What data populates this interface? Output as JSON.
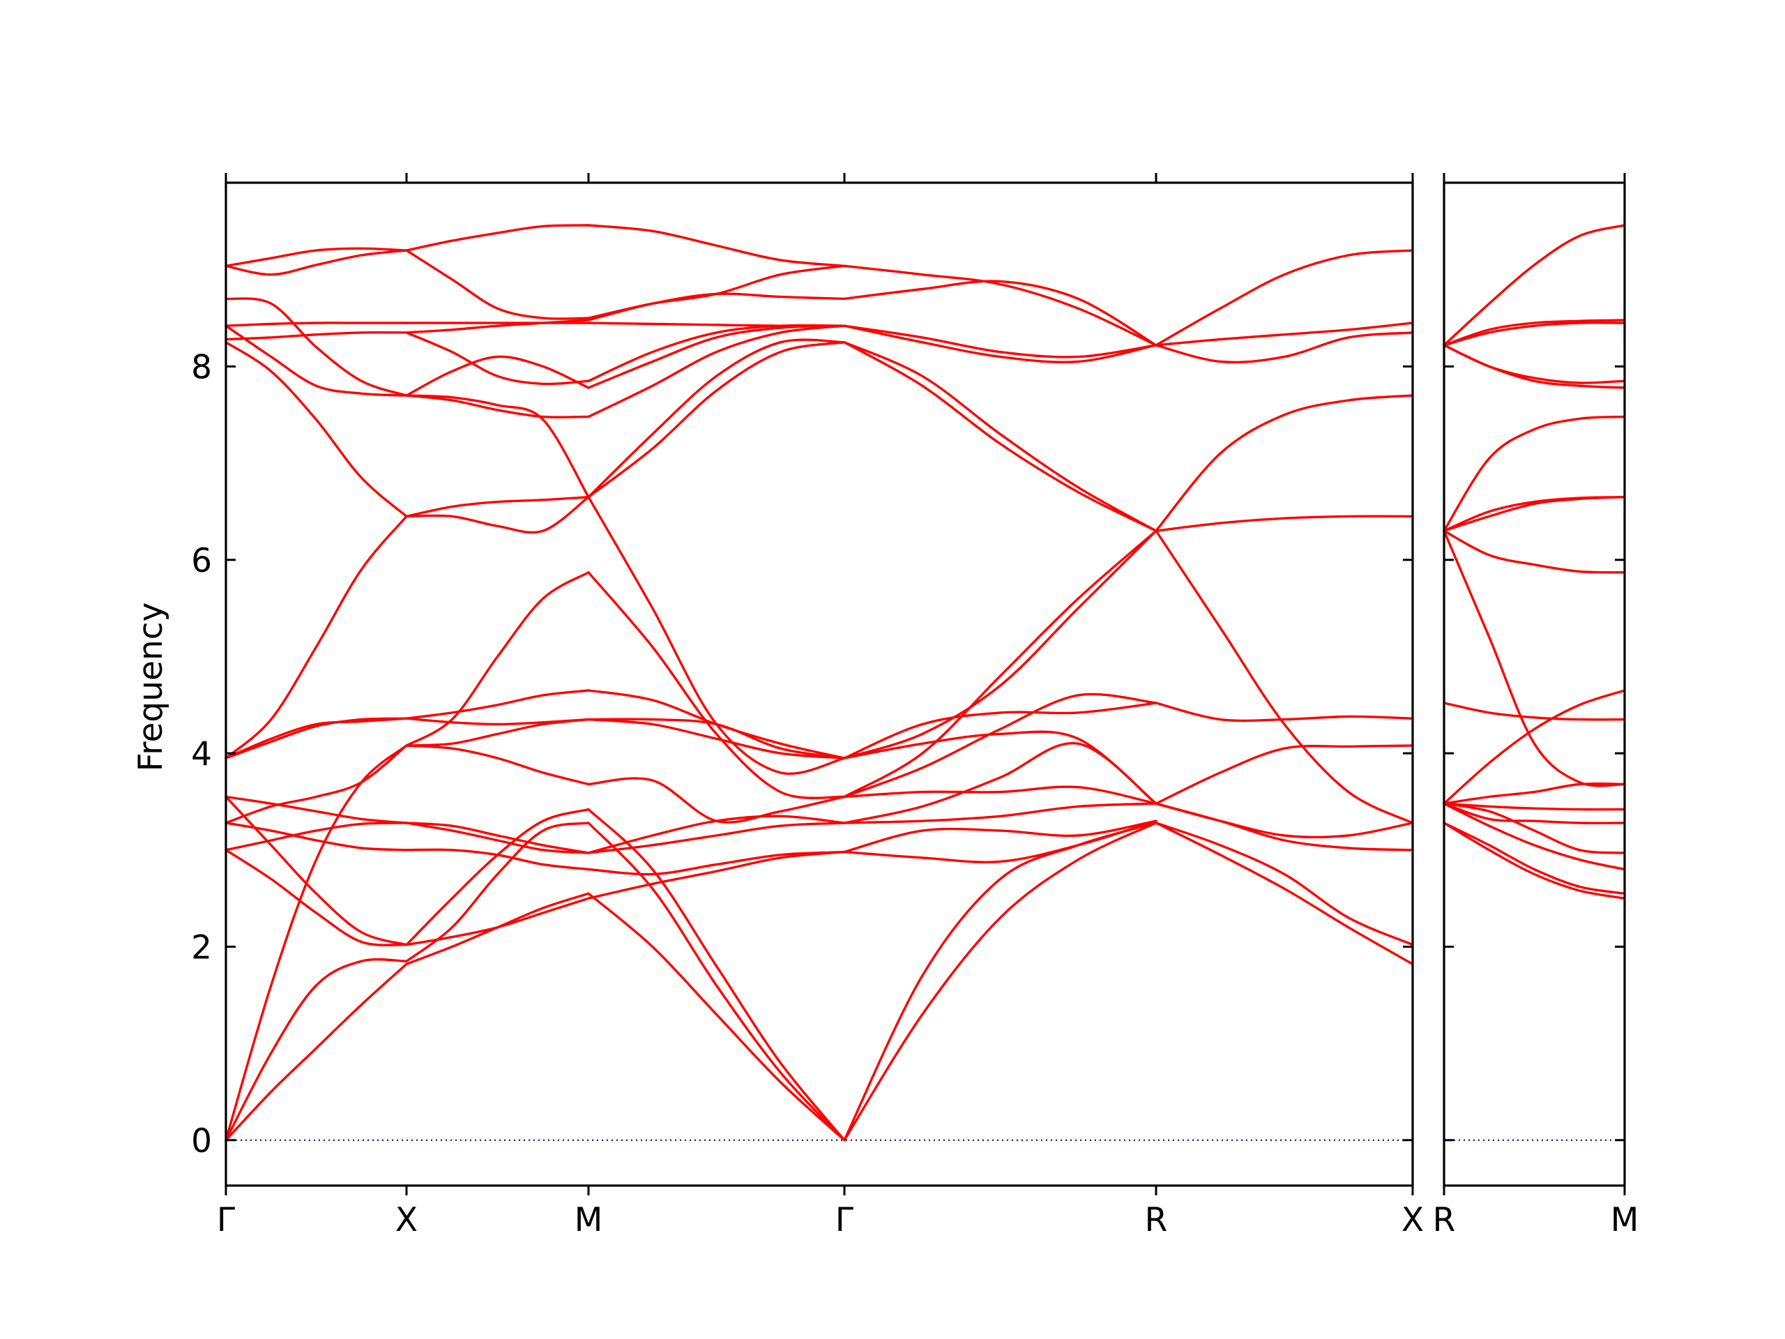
{
  "chart_data": {
    "type": "line",
    "ylabel": "Frequency",
    "ylim": [
      -0.47,
      9.9
    ],
    "y_ticks": [
      0,
      2,
      4,
      6,
      8
    ],
    "colors": {
      "bands": "#ff0000",
      "zero_line": "#00008b"
    },
    "reference_line": {
      "y": 0,
      "style": "dotted"
    },
    "grid": false,
    "legend": "none",
    "panels": [
      {
        "x_ticks": [
          "Γ",
          "X",
          "M",
          "Γ",
          "R",
          "X"
        ],
        "segments": [
          {
            "from": "Γ",
            "to": "X",
            "samples": [
              0,
              0.25,
              0.5,
              0.75,
              1
            ],
            "bands": [
              [
                0,
                0.5,
                0.95,
                1.4,
                1.82
              ],
              [
                0,
                0.9,
                1.6,
                1.85,
                1.85
              ],
              [
                3.0,
                2.7,
                2.35,
                2.05,
                2.02
              ],
              [
                3.55,
                3.05,
                2.55,
                2.15,
                2.02
              ],
              [
                3.28,
                3.2,
                3.1,
                3.02,
                3.0
              ],
              [
                3.0,
                3.1,
                3.2,
                3.27,
                3.28
              ],
              [
                3.55,
                3.48,
                3.4,
                3.32,
                3.28
              ],
              [
                3.28,
                3.45,
                3.55,
                3.7,
                4.08
              ],
              [
                0,
                1.6,
                2.9,
                3.7,
                4.08
              ],
              [
                3.95,
                4.12,
                4.28,
                4.35,
                4.36
              ],
              [
                3.95,
                4.15,
                4.3,
                4.33,
                4.36
              ],
              [
                3.95,
                4.35,
                5.1,
                5.9,
                6.45
              ],
              [
                8.25,
                7.95,
                7.45,
                6.85,
                6.45
              ],
              [
                8.42,
                8.1,
                7.8,
                7.72,
                7.7
              ],
              [
                8.7,
                8.65,
                8.2,
                7.85,
                7.7
              ],
              [
                8.28,
                8.3,
                8.33,
                8.35,
                8.35
              ],
              [
                8.42,
                8.44,
                8.45,
                8.45,
                8.45
              ],
              [
                9.04,
                8.95,
                9.05,
                9.15,
                9.2
              ],
              [
                9.04,
                9.12,
                9.2,
                9.22,
                9.2
              ]
            ]
          },
          {
            "from": "X",
            "to": "M",
            "samples": [
              0,
              0.25,
              0.5,
              0.75,
              1
            ],
            "bands": [
              [
                1.82,
                2.0,
                2.2,
                2.4,
                2.55
              ],
              [
                1.85,
                2.2,
                2.75,
                3.2,
                3.28
              ],
              [
                2.02,
                2.1,
                2.2,
                2.35,
                2.5
              ],
              [
                2.02,
                2.5,
                2.95,
                3.3,
                3.42
              ],
              [
                3.0,
                3.0,
                2.95,
                2.85,
                2.8
              ],
              [
                3.28,
                3.2,
                3.1,
                3.0,
                2.97
              ],
              [
                3.28,
                3.25,
                3.15,
                3.05,
                2.97
              ],
              [
                4.08,
                4.05,
                3.95,
                3.8,
                3.68
              ],
              [
                4.08,
                4.1,
                4.2,
                4.3,
                4.35
              ],
              [
                4.36,
                4.32,
                4.3,
                4.32,
                4.35
              ],
              [
                4.36,
                4.42,
                4.5,
                4.6,
                4.65
              ],
              [
                4.08,
                4.35,
                5.0,
                5.6,
                5.87
              ],
              [
                6.45,
                6.45,
                6.35,
                6.3,
                6.65
              ],
              [
                6.45,
                6.55,
                6.6,
                6.62,
                6.65
              ],
              [
                7.7,
                7.68,
                7.6,
                7.45,
                6.65
              ],
              [
                7.7,
                7.65,
                7.55,
                7.48,
                7.48
              ],
              [
                7.7,
                7.95,
                8.1,
                8.0,
                7.78
              ],
              [
                8.35,
                8.15,
                7.9,
                7.82,
                7.85
              ],
              [
                8.45,
                8.45,
                8.45,
                8.45,
                8.45
              ],
              [
                8.35,
                8.38,
                8.42,
                8.45,
                8.48
              ],
              [
                9.2,
                8.9,
                8.6,
                8.5,
                8.5
              ],
              [
                9.2,
                9.3,
                9.38,
                9.45,
                9.46
              ]
            ]
          },
          {
            "from": "M",
            "to": "Γ",
            "samples": [
              0,
              0.25,
              0.5,
              0.75,
              1
            ],
            "bands": [
              [
                2.55,
                2.0,
                1.3,
                0.6,
                0
              ],
              [
                3.28,
                2.6,
                1.6,
                0.7,
                0
              ],
              [
                3.42,
                2.8,
                1.8,
                0.8,
                0
              ],
              [
                2.5,
                2.65,
                2.78,
                2.92,
                2.98
              ],
              [
                2.8,
                2.75,
                2.85,
                2.95,
                2.98
              ],
              [
                2.97,
                3.05,
                3.15,
                3.25,
                3.28
              ],
              [
                2.97,
                3.15,
                3.3,
                3.35,
                3.28
              ],
              [
                3.68,
                3.72,
                3.3,
                3.4,
                3.55
              ],
              [
                5.87,
                5.1,
                4.2,
                3.6,
                3.55
              ],
              [
                6.65,
                5.5,
                4.3,
                3.8,
                3.95
              ],
              [
                4.35,
                4.3,
                4.15,
                4.0,
                3.95
              ],
              [
                4.35,
                4.35,
                4.3,
                4.05,
                3.95
              ],
              [
                4.65,
                4.55,
                4.3,
                4.1,
                3.95
              ],
              [
                6.65,
                7.15,
                7.75,
                8.15,
                8.25
              ],
              [
                6.65,
                7.3,
                7.9,
                8.25,
                8.25
              ],
              [
                7.48,
                7.8,
                8.15,
                8.35,
                8.42
              ],
              [
                7.78,
                8.05,
                8.3,
                8.4,
                8.42
              ],
              [
                7.85,
                8.15,
                8.35,
                8.42,
                8.42
              ],
              [
                8.45,
                8.44,
                8.43,
                8.42,
                8.42
              ],
              [
                8.48,
                8.65,
                8.75,
                8.72,
                8.7
              ],
              [
                8.5,
                8.65,
                8.75,
                8.95,
                9.04
              ],
              [
                9.46,
                9.4,
                9.25,
                9.1,
                9.04
              ]
            ]
          },
          {
            "from": "Γ",
            "to": "R",
            "samples": [
              0,
              0.25,
              0.5,
              0.75,
              1
            ],
            "bands": [
              [
                0,
                1.3,
                2.3,
                2.9,
                3.28
              ],
              [
                0,
                1.7,
                2.7,
                3.05,
                3.28
              ],
              [
                2.98,
                2.92,
                2.88,
                3.05,
                3.3
              ],
              [
                2.98,
                3.2,
                3.2,
                3.15,
                3.3
              ],
              [
                3.28,
                3.3,
                3.35,
                3.45,
                3.48
              ],
              [
                3.28,
                3.45,
                3.75,
                4.1,
                3.48
              ],
              [
                3.55,
                3.6,
                3.6,
                3.65,
                3.48
              ],
              [
                3.55,
                3.85,
                4.25,
                4.6,
                4.52
              ],
              [
                3.95,
                4.1,
                4.2,
                4.15,
                3.48
              ],
              [
                3.95,
                4.3,
                4.42,
                4.42,
                4.52
              ],
              [
                3.95,
                4.2,
                4.7,
                5.5,
                6.3
              ],
              [
                3.55,
                4.0,
                4.8,
                5.6,
                6.3
              ],
              [
                8.25,
                7.8,
                7.2,
                6.7,
                6.3
              ],
              [
                8.25,
                7.9,
                7.3,
                6.75,
                6.3
              ],
              [
                8.42,
                8.25,
                8.1,
                8.05,
                8.22
              ],
              [
                8.42,
                8.3,
                8.15,
                8.1,
                8.22
              ],
              [
                8.7,
                8.8,
                8.88,
                8.7,
                8.22
              ],
              [
                9.04,
                8.95,
                8.85,
                8.6,
                8.22
              ]
            ]
          },
          {
            "from": "R",
            "to": "X",
            "samples": [
              0,
              0.25,
              0.5,
              0.75,
              1
            ],
            "bands": [
              [
                3.28,
                2.95,
                2.6,
                2.2,
                1.82
              ],
              [
                3.28,
                3.05,
                2.75,
                2.3,
                2.02
              ],
              [
                3.48,
                3.3,
                3.1,
                3.02,
                3.0
              ],
              [
                3.48,
                3.3,
                3.15,
                3.15,
                3.28
              ],
              [
                4.52,
                4.35,
                4.35,
                4.38,
                4.36
              ],
              [
                3.48,
                3.8,
                4.05,
                4.07,
                4.08
              ],
              [
                6.3,
                5.3,
                4.3,
                3.6,
                3.28
              ],
              [
                6.3,
                6.38,
                6.43,
                6.45,
                6.45
              ],
              [
                6.3,
                7.1,
                7.5,
                7.65,
                7.7
              ],
              [
                8.22,
                8.05,
                8.1,
                8.3,
                8.35
              ],
              [
                8.22,
                8.28,
                8.33,
                8.38,
                8.45
              ],
              [
                8.22,
                8.6,
                8.95,
                9.15,
                9.2
              ]
            ]
          }
        ]
      },
      {
        "x_ticks": [
          "R",
          "M"
        ],
        "segments": [
          {
            "from": "R",
            "to": "M",
            "samples": [
              0,
              0.25,
              0.5,
              0.75,
              1
            ],
            "bands": [
              [
                3.28,
                3.0,
                2.75,
                2.58,
                2.5
              ],
              [
                3.28,
                3.05,
                2.8,
                2.62,
                2.55
              ],
              [
                3.48,
                3.25,
                3.05,
                2.9,
                2.8
              ],
              [
                3.48,
                3.4,
                3.2,
                3.0,
                2.97
              ],
              [
                3.48,
                3.32,
                3.3,
                3.28,
                3.28
              ],
              [
                3.48,
                3.45,
                3.43,
                3.42,
                3.42
              ],
              [
                3.48,
                3.55,
                3.6,
                3.68,
                3.68
              ],
              [
                3.48,
                3.9,
                4.25,
                4.5,
                4.65
              ],
              [
                4.52,
                4.42,
                4.37,
                4.35,
                4.35
              ],
              [
                6.3,
                5.2,
                4.1,
                3.7,
                3.68
              ],
              [
                6.3,
                6.05,
                5.95,
                5.88,
                5.87
              ],
              [
                6.3,
                6.45,
                6.58,
                6.63,
                6.65
              ],
              [
                6.3,
                6.5,
                6.6,
                6.64,
                6.65
              ],
              [
                6.3,
                7.05,
                7.35,
                7.46,
                7.48
              ],
              [
                8.22,
                8.0,
                7.85,
                7.8,
                7.78
              ],
              [
                8.22,
                8.0,
                7.88,
                7.83,
                7.85
              ],
              [
                8.22,
                8.35,
                8.42,
                8.45,
                8.45
              ],
              [
                8.22,
                8.38,
                8.45,
                8.47,
                8.48
              ],
              [
                8.22,
                8.65,
                9.05,
                9.35,
                9.46
              ]
            ]
          }
        ]
      }
    ]
  }
}
